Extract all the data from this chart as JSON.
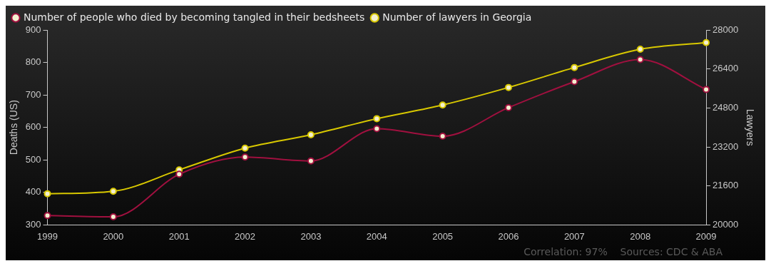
{
  "chart_data": {
    "type": "line",
    "categories": [
      "1999",
      "2000",
      "2001",
      "2002",
      "2003",
      "2004",
      "2005",
      "2006",
      "2007",
      "2008",
      "2009"
    ],
    "series": [
      {
        "name": "Number of people who died by becoming tangled in their bedsheets",
        "color": "#a0103f",
        "values": [
          329,
          325,
          456,
          509,
          497,
          596,
          573,
          661,
          741,
          809,
          717
        ]
      },
      {
        "name": "Number of lawyers in Georgia",
        "color": "#d8c800",
        "axis": "y2",
        "values": [
          21280,
          21380,
          22260,
          23150,
          23700,
          24360,
          24920,
          25640,
          26460,
          27210,
          27480
        ]
      }
    ],
    "ylabel": "Deaths (US)",
    "y2label": "Lawyers",
    "ylim": [
      300,
      900
    ],
    "yticks": [
      300,
      400,
      500,
      600,
      700,
      800,
      900
    ],
    "y2lim": [
      20000,
      28000
    ],
    "y2ticks": [
      20000,
      21600,
      23200,
      24800,
      26400,
      28000
    ],
    "grid": false,
    "legend": "top left",
    "marker": "circle",
    "line_style": "solid",
    "annotations": [
      "Correlation: 97%    Sources: CDC & ABA"
    ]
  }
}
